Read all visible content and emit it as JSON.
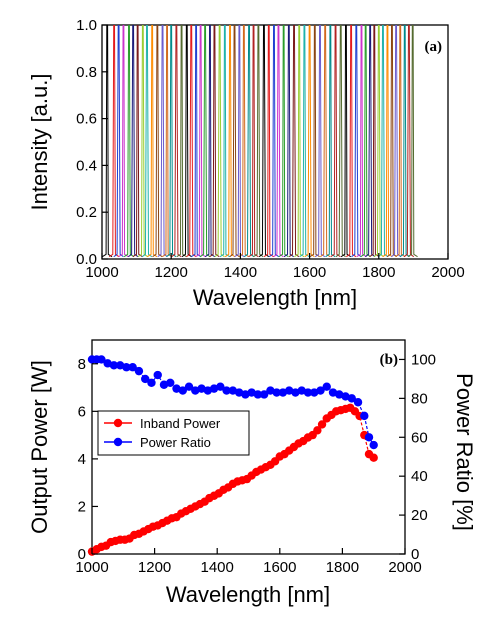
{
  "chart_data": [
    {
      "type": "line",
      "panel_label": "(a)",
      "xlabel": "Wavelength [nm]",
      "ylabel": "Intensity [a.u.]",
      "xlim": [
        1000,
        2000
      ],
      "ylim": [
        0.0,
        1.0
      ],
      "x_ticks": [
        "1000",
        "1200",
        "1400",
        "1600",
        "1800",
        "2000"
      ],
      "y_ticks": [
        "0.0",
        "0.2",
        "0.4",
        "0.6",
        "0.8",
        "1.0"
      ],
      "grid": false,
      "description_series": "normalized spectra, one peak per tuning step",
      "peak_wavelengths": [
        1015,
        1035,
        1048,
        1062,
        1078,
        1090,
        1103,
        1118,
        1130,
        1145,
        1160,
        1175,
        1188,
        1200,
        1215,
        1230,
        1245,
        1258,
        1272,
        1285,
        1298,
        1312,
        1325,
        1340,
        1355,
        1370,
        1383,
        1397,
        1410,
        1425,
        1438,
        1452,
        1468,
        1482,
        1497,
        1510,
        1525,
        1540,
        1555,
        1570,
        1585,
        1600,
        1615,
        1630,
        1645,
        1660,
        1675,
        1690,
        1705,
        1720,
        1735,
        1750,
        1762,
        1775,
        1787,
        1800,
        1812,
        1825,
        1838,
        1850,
        1862,
        1875,
        1887,
        1898
      ],
      "peak_value": 1.0,
      "colors": [
        "#000000",
        "#e41a1c",
        "#1f3fd1",
        "#cc33cc",
        "#2a9d2a",
        "#1a1a7a",
        "#7a1a1a",
        "#9acd32",
        "#20b2aa",
        "#ff8c00",
        "#8b4513",
        "#6a5acd",
        "#d2691e",
        "#008b8b",
        "#b22222",
        "#556b2f"
      ]
    },
    {
      "type": "line",
      "panel_label": "(b)",
      "xlabel": "Wavelength [nm]",
      "ylabel": "Output Power [W]",
      "ylabel_right": "Power Ratio [%]",
      "xlim": [
        1000,
        2000
      ],
      "ylim": [
        0,
        9
      ],
      "ylim_right": [
        0,
        110
      ],
      "x_ticks": [
        "1000",
        "1200",
        "1400",
        "1600",
        "1800",
        "2000"
      ],
      "y_ticks": [
        "0",
        "2",
        "4",
        "6",
        "8"
      ],
      "y_ticks_right": [
        "0",
        "20",
        "40",
        "60",
        "80",
        "100"
      ],
      "legend_position": "left",
      "grid": false,
      "series": [
        {
          "name": "Inband Power",
          "axis": "left",
          "color": "#ff0000",
          "x": [
            1000,
            1015,
            1030,
            1045,
            1060,
            1075,
            1090,
            1105,
            1120,
            1135,
            1150,
            1165,
            1180,
            1195,
            1210,
            1225,
            1240,
            1255,
            1270,
            1285,
            1300,
            1315,
            1330,
            1345,
            1360,
            1375,
            1390,
            1405,
            1420,
            1435,
            1450,
            1465,
            1480,
            1495,
            1510,
            1525,
            1540,
            1555,
            1570,
            1585,
            1600,
            1615,
            1630,
            1645,
            1660,
            1675,
            1690,
            1705,
            1720,
            1735,
            1750,
            1765,
            1780,
            1795,
            1810,
            1825,
            1840,
            1855,
            1870,
            1885,
            1900
          ],
          "y": [
            0.1,
            0.2,
            0.3,
            0.35,
            0.5,
            0.55,
            0.6,
            0.6,
            0.65,
            0.8,
            0.85,
            0.95,
            1.05,
            1.15,
            1.2,
            1.3,
            1.4,
            1.5,
            1.55,
            1.7,
            1.8,
            1.9,
            2.0,
            2.1,
            2.2,
            2.35,
            2.45,
            2.55,
            2.7,
            2.8,
            2.95,
            3.05,
            3.1,
            3.15,
            3.3,
            3.45,
            3.55,
            3.65,
            3.75,
            3.9,
            4.1,
            4.2,
            4.35,
            4.5,
            4.65,
            4.75,
            4.9,
            5.0,
            5.2,
            5.45,
            5.7,
            5.85,
            6.0,
            6.05,
            6.1,
            6.15,
            6.0,
            5.8,
            5.0,
            4.2,
            4.05
          ]
        },
        {
          "name": "Power Ratio",
          "axis": "right",
          "color": "#0000ff",
          "x": [
            1000,
            1015,
            1030,
            1050,
            1070,
            1090,
            1110,
            1130,
            1150,
            1170,
            1190,
            1210,
            1230,
            1250,
            1270,
            1290,
            1310,
            1330,
            1350,
            1370,
            1390,
            1410,
            1430,
            1450,
            1470,
            1490,
            1510,
            1530,
            1550,
            1570,
            1590,
            1610,
            1630,
            1650,
            1670,
            1690,
            1710,
            1730,
            1750,
            1770,
            1790,
            1810,
            1830,
            1850,
            1870,
            1885,
            1900
          ],
          "y": [
            100,
            100,
            100,
            98,
            97,
            97,
            96,
            96,
            94,
            90,
            88,
            92,
            87,
            88,
            85,
            84,
            86,
            84,
            85,
            84,
            85,
            86,
            84,
            84,
            83,
            82,
            83,
            82,
            82,
            84,
            83,
            83,
            84,
            83,
            84,
            83,
            83,
            84,
            86,
            83,
            82,
            81,
            80,
            78,
            71,
            60,
            56
          ]
        }
      ]
    }
  ]
}
